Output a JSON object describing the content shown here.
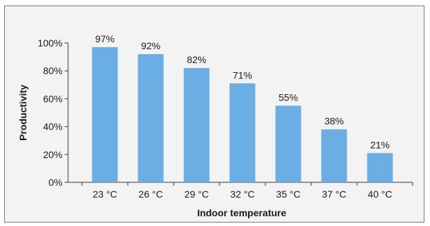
{
  "chart_data": {
    "type": "bar",
    "categories": [
      "23 °C",
      "26 °C",
      "29 °C",
      "32 °C",
      "35 °C",
      "37 °C",
      "40 °C"
    ],
    "values": [
      97,
      92,
      82,
      71,
      55,
      38,
      21
    ],
    "data_labels": [
      "97%",
      "92%",
      "82%",
      "71%",
      "55%",
      "38%",
      "21%"
    ],
    "xlabel": "Indoor temperature",
    "ylabel": "Productivity",
    "ylim": [
      0,
      100
    ],
    "y_ticks": [
      0,
      20,
      40,
      60,
      80,
      100
    ],
    "y_tick_labels": [
      "0%",
      "20%",
      "40%",
      "60%",
      "80%",
      "100%"
    ],
    "grid": false,
    "legend": "none",
    "colors": {
      "bar": "#6aaee3",
      "axis": "#333333",
      "background": "#f3f3f4"
    }
  }
}
